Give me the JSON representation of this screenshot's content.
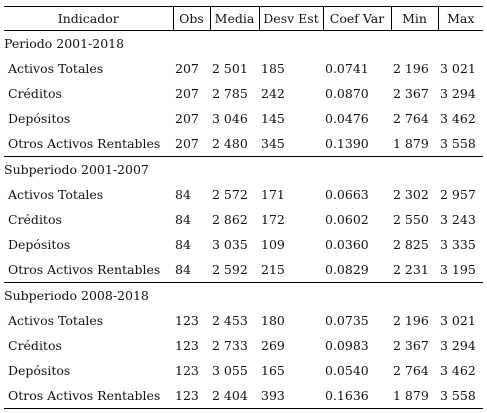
{
  "headers": [
    "Indicador",
    "Obs",
    "Media",
    "Desv Est",
    "Coef Var",
    "Min",
    "Max"
  ],
  "sections": [
    {
      "title": "Periodo 2001-2018",
      "rows": [
        [
          "Activos Totales",
          "207",
          "2 501",
          "185",
          "0.0741",
          "2 196",
          "3 021"
        ],
        [
          "Créditos",
          "207",
          "2 785",
          "242",
          "0.0870",
          "2 367",
          "3 294"
        ],
        [
          "Depósitos",
          "207",
          "3 046",
          "145",
          "0.0476",
          "2 764",
          "3 462"
        ],
        [
          "Otros Activos Rentables",
          "207",
          "2 480",
          "345",
          "0.1390",
          "1 879",
          "3 558"
        ]
      ]
    },
    {
      "title": "Subperiodo 2001-2007",
      "rows": [
        [
          "Activos Totales",
          "84",
          "2 572",
          "171",
          "0.0663",
          "2 302",
          "2 957"
        ],
        [
          "Créditos",
          "84",
          "2 862",
          "172",
          "0.0602",
          "2 550",
          "3 243"
        ],
        [
          "Depósitos",
          "84",
          "3 035",
          "109",
          "0.0360",
          "2 825",
          "3 335"
        ],
        [
          "Otros Activos Rentables",
          "84",
          "2 592",
          "215",
          "0.0829",
          "2 231",
          "3 195"
        ]
      ]
    },
    {
      "title": "Subperiodo 2008-2018",
      "rows": [
        [
          "Activos Totales",
          "123",
          "2 453",
          "180",
          "0.0735",
          "2 196",
          "3 021"
        ],
        [
          "Créditos",
          "123",
          "2 733",
          "269",
          "0.0983",
          "2 367",
          "3 294"
        ],
        [
          "Depósitos",
          "123",
          "3 055",
          "165",
          "0.0540",
          "2 764",
          "3 462"
        ],
        [
          "Otros Activos Rentables",
          "123",
          "2 404",
          "393",
          "0.1636",
          "1 879",
          "3 558"
        ]
      ]
    }
  ]
}
